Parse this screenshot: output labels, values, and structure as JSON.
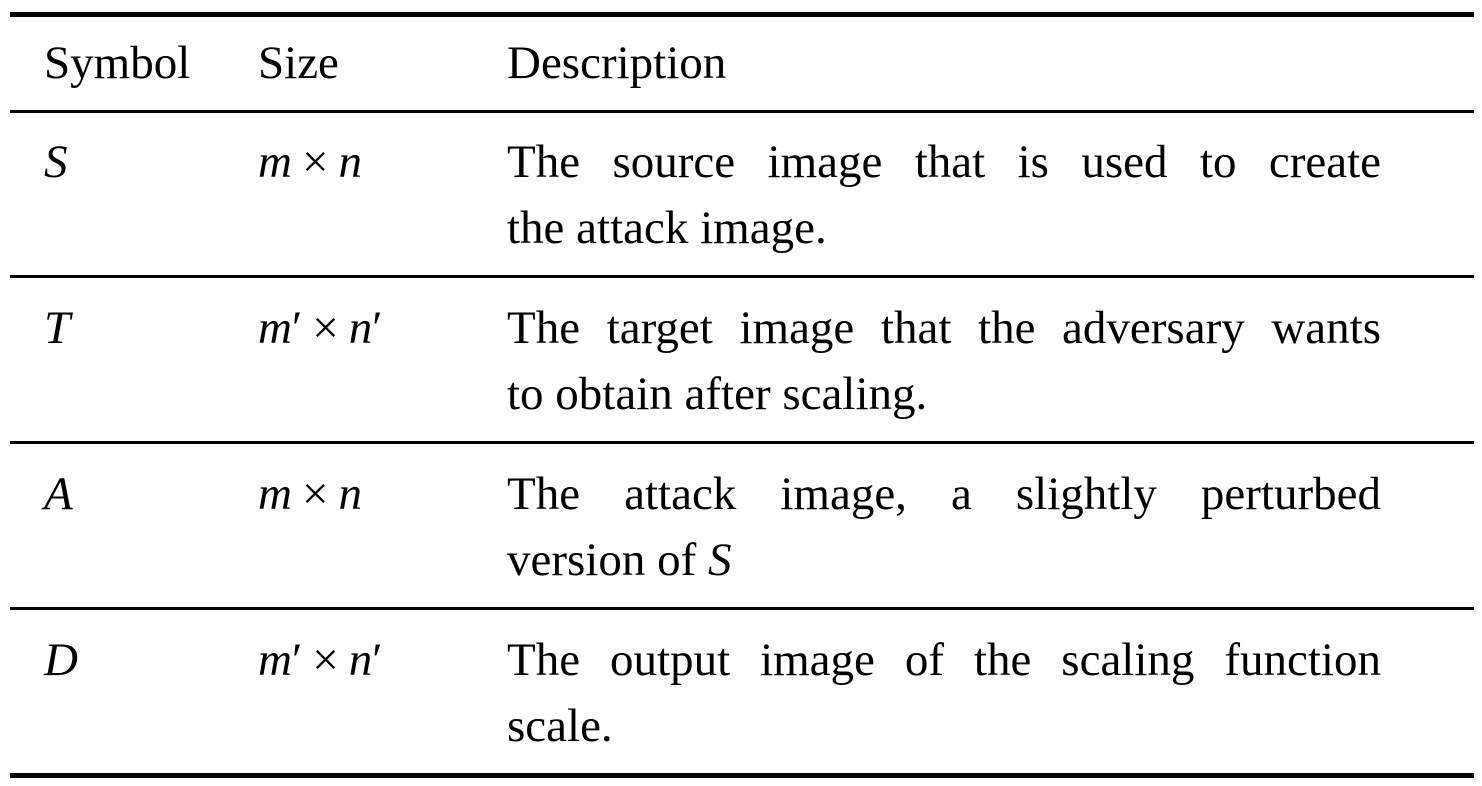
{
  "table": {
    "headers": {
      "symbol": "Symbol",
      "size": "Size",
      "description": "Description"
    },
    "rows": [
      {
        "symbol": "S",
        "size": {
          "a": "m",
          "a_prime": "",
          "op": "×",
          "b": "n",
          "b_prime": ""
        },
        "description_lines": [
          "The source image that is used to create",
          "the attack image."
        ],
        "description_tail": ""
      },
      {
        "symbol": "T",
        "size": {
          "a": "m",
          "a_prime": "′",
          "op": "×",
          "b": "n",
          "b_prime": "′"
        },
        "description_lines": [
          "The target image that the adversary wants",
          "to obtain after scaling."
        ],
        "description_tail": ""
      },
      {
        "symbol": "A",
        "size": {
          "a": "m",
          "a_prime": "",
          "op": "×",
          "b": "n",
          "b_prime": ""
        },
        "description_lines": [
          "The attack image, a slightly perturbed",
          "version of "
        ],
        "description_tail": "S"
      },
      {
        "symbol": "D",
        "size": {
          "a": "m",
          "a_prime": "′",
          "op": "×",
          "b": "n",
          "b_prime": "′"
        },
        "description_lines": [
          "The output image of the scaling function",
          "scale."
        ],
        "description_tail": ""
      }
    ]
  }
}
